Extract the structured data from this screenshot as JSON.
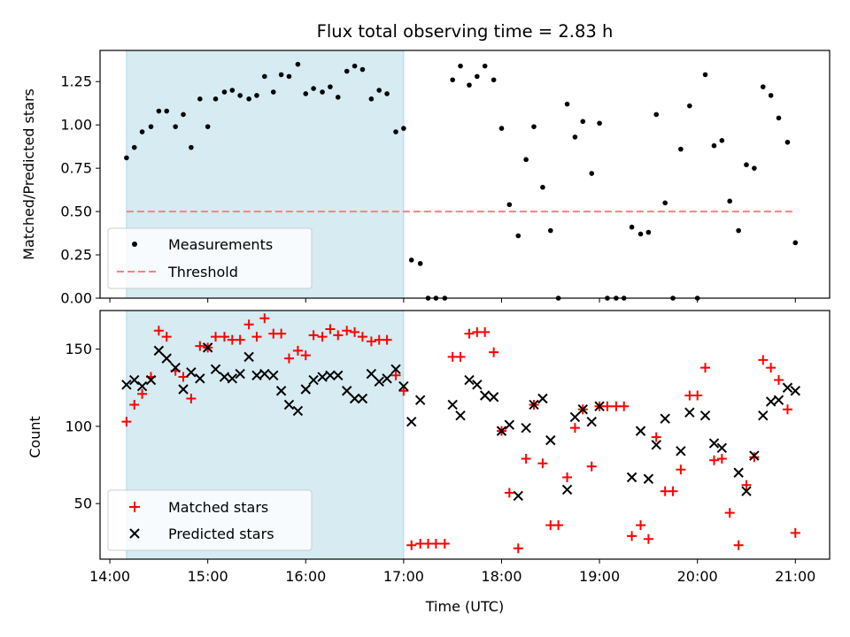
{
  "chart_data": [
    {
      "type": "scatter",
      "title": "Flux total observing time = 2.83 h",
      "xlabel": "",
      "ylabel": "Matched/Predicted stars",
      "xlim": [
        13.9,
        21.35
      ],
      "ylim": [
        0,
        1.43
      ],
      "yticks": [
        0.0,
        0.25,
        0.5,
        0.75,
        1.0,
        1.25
      ],
      "ytick_labels": [
        "0.00",
        "0.25",
        "0.50",
        "0.75",
        "1.00",
        "1.25"
      ],
      "shaded_region": {
        "x0": 14.17,
        "x1": 17.0,
        "color": "#add8e6"
      },
      "legend": {
        "placement": "lower-left",
        "entries": [
          "Measurements",
          "Threshold"
        ]
      },
      "series": [
        {
          "name": "Measurements",
          "marker": "dot",
          "color": "#000000",
          "x": [
            14.17,
            14.25,
            14.33,
            14.42,
            14.5,
            14.58,
            14.67,
            14.75,
            14.83,
            14.92,
            15.0,
            15.08,
            15.17,
            15.25,
            15.33,
            15.42,
            15.5,
            15.58,
            15.67,
            15.75,
            15.83,
            15.92,
            16.0,
            16.08,
            16.17,
            16.25,
            16.33,
            16.42,
            16.5,
            16.58,
            16.67,
            16.75,
            16.83,
            16.92,
            17.0,
            17.08,
            17.17,
            17.25,
            17.33,
            17.42,
            17.5,
            17.58,
            17.67,
            17.75,
            17.83,
            17.92,
            18.0,
            18.08,
            18.17,
            18.25,
            18.33,
            18.42,
            18.5,
            18.58,
            18.67,
            18.75,
            18.83,
            18.92,
            19.0,
            19.08,
            19.17,
            19.25,
            19.33,
            19.42,
            19.5,
            19.58,
            19.67,
            19.75,
            19.83,
            19.92,
            20.0,
            20.08,
            20.17,
            20.25,
            20.33,
            20.42,
            20.5,
            20.58,
            20.67,
            20.75,
            20.83,
            20.92,
            21.0
          ],
          "y": [
            0.81,
            0.87,
            0.96,
            0.99,
            1.08,
            1.08,
            0.99,
            1.06,
            0.87,
            1.15,
            0.99,
            1.15,
            1.19,
            1.2,
            1.17,
            1.15,
            1.17,
            1.28,
            1.19,
            1.29,
            1.28,
            1.35,
            1.18,
            1.21,
            1.19,
            1.22,
            1.16,
            1.31,
            1.34,
            1.32,
            1.15,
            1.2,
            1.18,
            0.96,
            0.98,
            0.22,
            0.2,
            0.0,
            0.0,
            0.0,
            1.26,
            1.34,
            1.23,
            1.28,
            1.34,
            1.26,
            0.98,
            0.54,
            0.36,
            0.8,
            0.99,
            0.64,
            0.39,
            0.0,
            1.12,
            0.93,
            1.02,
            0.72,
            1.01,
            0.0,
            0.0,
            0.0,
            0.41,
            0.37,
            0.38,
            1.06,
            0.55,
            0.0,
            0.86,
            1.11,
            0.0,
            1.29,
            0.88,
            0.91,
            0.56,
            0.39,
            0.77,
            0.75,
            1.22,
            1.17,
            1.04,
            0.9,
            0.32
          ]
        },
        {
          "name": "Threshold",
          "type": "line",
          "style": "dashed",
          "color": "#ff7f7f",
          "x": [
            14.17,
            21.0
          ],
          "y": [
            0.5,
            0.5
          ]
        }
      ]
    },
    {
      "type": "scatter",
      "title": "",
      "xlabel": "Time (UTC)",
      "ylabel": "Count",
      "xlim": [
        13.9,
        21.35
      ],
      "ylim": [
        14,
        175
      ],
      "yticks": [
        50,
        100,
        150
      ],
      "ytick_labels": [
        "50",
        "100",
        "150"
      ],
      "xticks": [
        14,
        15,
        16,
        17,
        18,
        19,
        20,
        21
      ],
      "xtick_labels": [
        "14:00",
        "15:00",
        "16:00",
        "17:00",
        "18:00",
        "19:00",
        "20:00",
        "21:00"
      ],
      "shaded_region": {
        "x0": 14.17,
        "x1": 17.0,
        "color": "#add8e6"
      },
      "legend": {
        "placement": "lower-left",
        "entries": [
          "Matched stars",
          "Predicted stars"
        ]
      },
      "series": [
        {
          "name": "Matched stars",
          "marker": "plus",
          "color": "#ff0000",
          "x": [
            14.17,
            14.25,
            14.33,
            14.42,
            14.5,
            14.58,
            14.67,
            14.75,
            14.83,
            14.92,
            15.0,
            15.08,
            15.17,
            15.25,
            15.33,
            15.42,
            15.5,
            15.58,
            15.67,
            15.75,
            15.83,
            15.92,
            16.0,
            16.08,
            16.17,
            16.25,
            16.33,
            16.42,
            16.5,
            16.58,
            16.67,
            16.75,
            16.83,
            16.92,
            17.0,
            17.08,
            17.17,
            17.25,
            17.33,
            17.42,
            17.5,
            17.58,
            17.67,
            17.75,
            17.83,
            17.92,
            18.0,
            18.08,
            18.17,
            18.25,
            18.33,
            18.42,
            18.5,
            18.58,
            18.67,
            18.75,
            18.83,
            18.92,
            19.0,
            19.08,
            19.17,
            19.25,
            19.33,
            19.42,
            19.5,
            19.58,
            19.67,
            19.75,
            19.83,
            19.92,
            20.0,
            20.08,
            20.17,
            20.25,
            20.33,
            20.42,
            20.5,
            20.58,
            20.67,
            20.75,
            20.83,
            20.92,
            21.0
          ],
          "y": [
            103,
            114,
            121,
            132,
            162,
            158,
            136,
            132,
            118,
            152,
            151,
            158,
            158,
            156,
            156,
            166,
            158,
            170,
            160,
            160,
            144,
            149,
            146,
            159,
            158,
            163,
            159,
            162,
            161,
            158,
            155,
            156,
            156,
            133,
            123,
            23,
            24,
            24,
            24,
            24,
            145,
            145,
            160,
            161,
            161,
            148,
            97,
            57,
            21,
            79,
            114,
            76,
            36,
            36,
            67,
            99,
            111,
            74,
            113,
            113,
            113,
            113,
            29,
            36,
            27,
            93,
            58,
            58,
            72,
            120,
            120,
            138,
            78,
            79,
            44,
            23,
            62,
            80,
            143,
            138,
            130,
            111,
            31
          ]
        },
        {
          "name": "Predicted stars",
          "marker": "x",
          "color": "#000000",
          "x": [
            14.17,
            14.25,
            14.33,
            14.42,
            14.5,
            14.58,
            14.67,
            14.75,
            14.83,
            14.92,
            15.0,
            15.08,
            15.17,
            15.25,
            15.33,
            15.42,
            15.5,
            15.58,
            15.67,
            15.75,
            15.83,
            15.92,
            16.0,
            16.08,
            16.17,
            16.25,
            16.33,
            16.42,
            16.5,
            16.58,
            16.67,
            16.75,
            16.83,
            16.92,
            17.0,
            17.08,
            17.17,
            17.5,
            17.58,
            17.67,
            17.75,
            17.83,
            17.92,
            18.0,
            18.08,
            18.17,
            18.25,
            18.33,
            18.42,
            18.5,
            18.67,
            18.75,
            18.83,
            18.92,
            19.0,
            19.33,
            19.42,
            19.5,
            19.58,
            19.67,
            19.83,
            19.92,
            20.08,
            20.17,
            20.25,
            20.42,
            20.5,
            20.58,
            20.67,
            20.75,
            20.83,
            20.92,
            21.0
          ],
          "y": [
            127,
            130,
            126,
            130,
            149,
            144,
            138,
            124,
            135,
            131,
            151,
            137,
            132,
            131,
            134,
            145,
            133,
            134,
            133,
            123,
            114,
            110,
            124,
            130,
            132,
            133,
            133,
            123,
            118,
            118,
            134,
            129,
            131,
            137,
            126,
            103,
            117,
            114,
            107,
            130,
            127,
            120,
            119,
            97,
            101,
            55,
            99,
            114,
            118,
            91,
            59,
            106,
            111,
            103,
            113,
            67,
            97,
            66,
            88,
            105,
            84,
            109,
            107,
            89,
            86,
            70,
            58,
            81,
            107,
            116,
            117,
            125,
            123
          ]
        }
      ]
    }
  ]
}
